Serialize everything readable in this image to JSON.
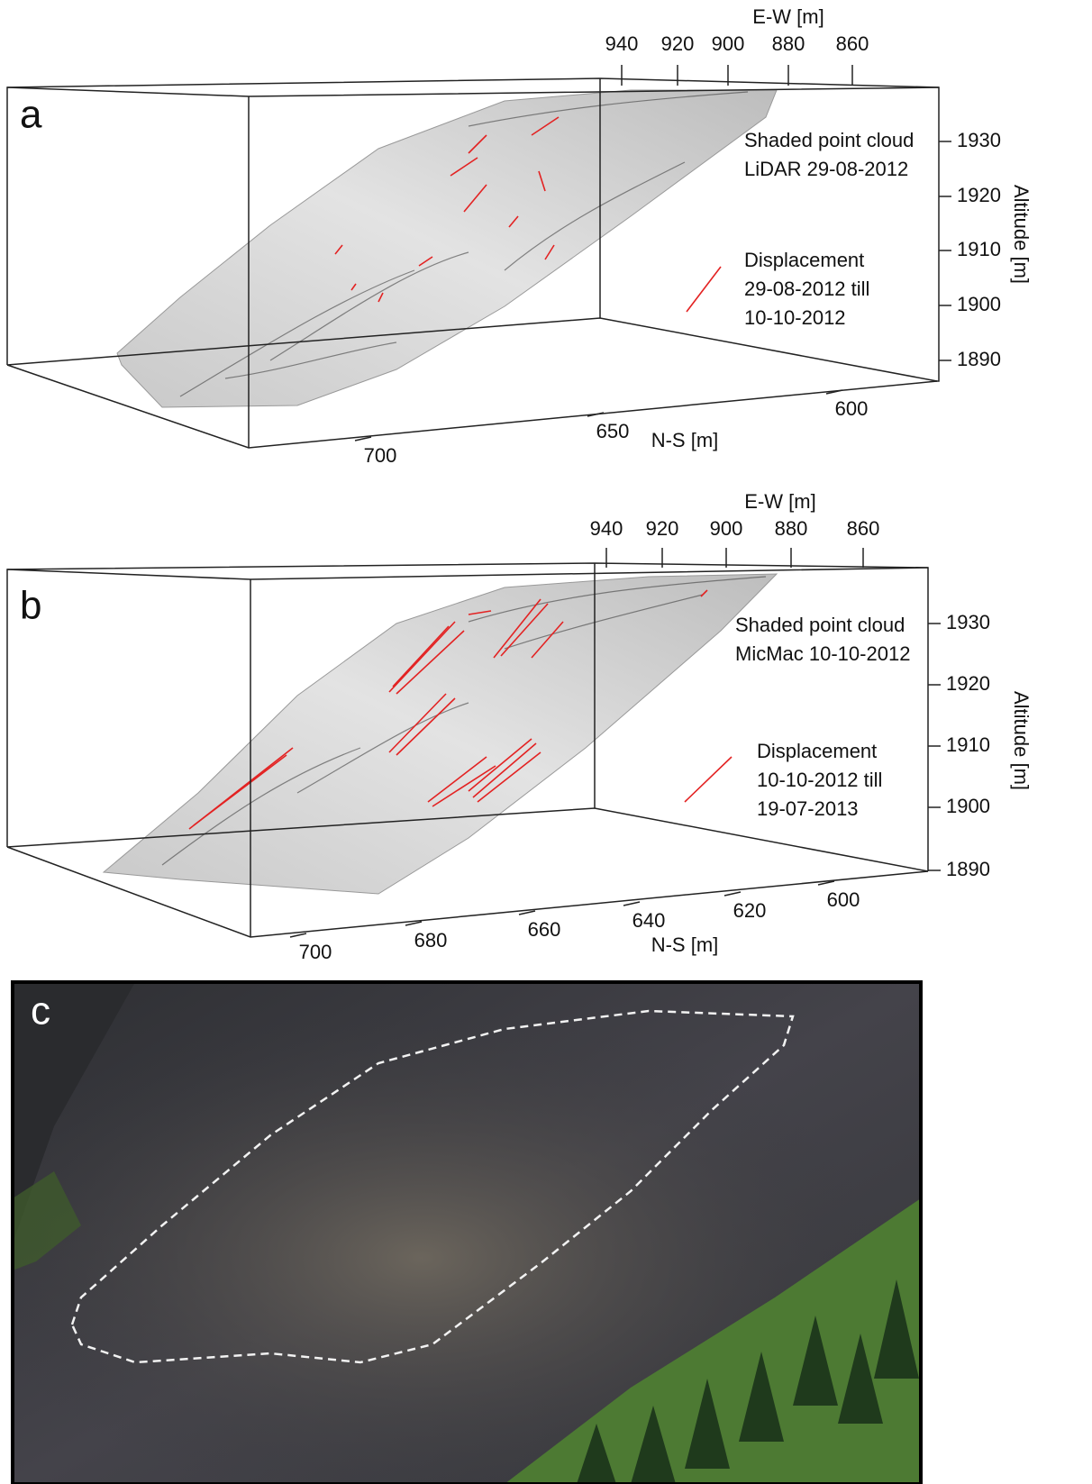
{
  "panels": [
    {
      "letter": "a",
      "annotation": [
        "Shaded point cloud",
        "LiDAR 29-08-2012"
      ],
      "legend": [
        "Displacement",
        "29-08-2012 till",
        "10-10-2012"
      ],
      "ew_axis": {
        "title": "E-W [m]",
        "ticks": [
          940,
          920,
          900,
          880,
          860
        ]
      },
      "altitude_axis": {
        "title": "Altitude [m]",
        "ticks": [
          1930,
          1920,
          1910,
          1900,
          1890
        ]
      },
      "ns_axis": {
        "title": "N-S [m]",
        "ticks": [
          700,
          650,
          600
        ]
      }
    },
    {
      "letter": "b",
      "annotation": [
        "Shaded point cloud",
        "MicMac 10-10-2012"
      ],
      "legend": [
        "Displacement",
        "10-10-2012 till",
        "19-07-2013"
      ],
      "ew_axis": {
        "title": "E-W [m]",
        "ticks": [
          940,
          920,
          900,
          880,
          860
        ]
      },
      "altitude_axis": {
        "title": "Altitude [m]",
        "ticks": [
          1930,
          1920,
          1910,
          1900,
          1890
        ]
      },
      "ns_axis": {
        "title": "N-S [m]",
        "ticks": [
          700,
          680,
          660,
          640,
          620,
          600
        ]
      }
    },
    {
      "letter": "c"
    }
  ]
}
